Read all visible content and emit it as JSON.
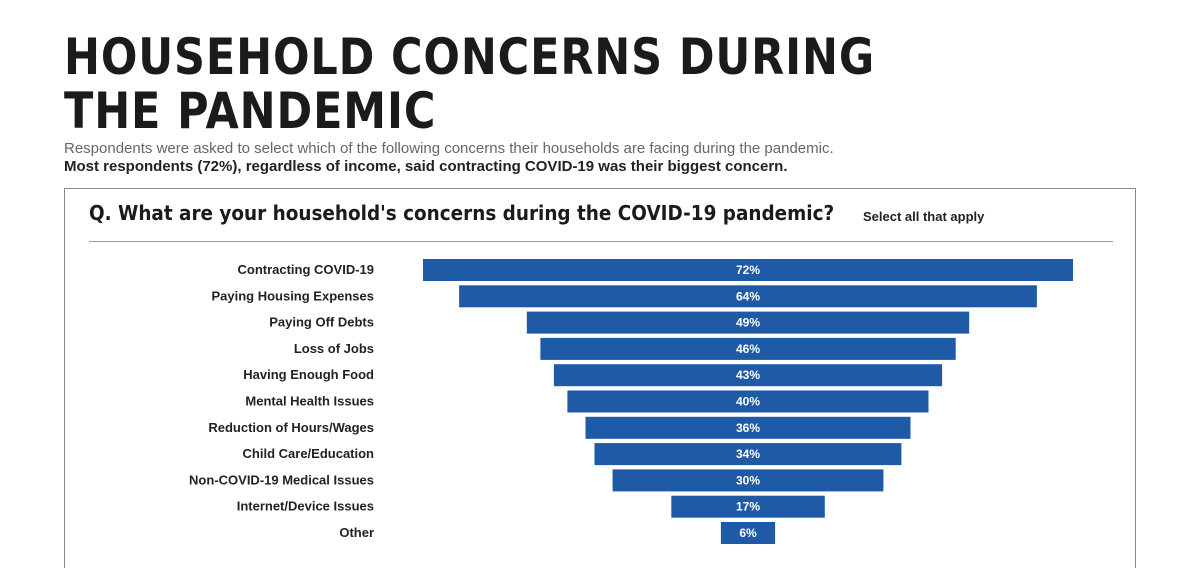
{
  "header": {
    "title_line1": "HOUSEHOLD CONCERNS DURING",
    "title_line2": "THE PANDEMIC",
    "subtitle": "Respondents were asked to select which of the following concerns their households are facing during the pandemic.",
    "subtitle_bold": "Most respondents (72%), regardless of income, said contracting COVID-19 was their biggest concern."
  },
  "panel": {
    "question": "Q. What are your household's concerns during the COVID-19 pandemic?",
    "note": "Select all that apply"
  },
  "colors": {
    "bar": "#1f5aa6",
    "bar_text": "#ffffff"
  },
  "chart_data": {
    "type": "bar",
    "orientation": "horizontal-centered",
    "categories": [
      "Contracting COVID-19",
      "Paying Housing Expenses",
      "Paying Off Debts",
      "Loss of Jobs",
      "Having Enough Food",
      "Mental Health Issues",
      "Reduction of Hours/Wages",
      "Child Care/Education",
      "Non-COVID-19 Medical Issues",
      "Internet/Device Issues",
      "Other"
    ],
    "values": [
      72,
      64,
      49,
      46,
      43,
      40,
      36,
      34,
      30,
      17,
      6
    ],
    "value_labels": [
      "72%",
      "64%",
      "49%",
      "46%",
      "43%",
      "40%",
      "36%",
      "34%",
      "30%",
      "17%",
      "6%"
    ],
    "title": "Q. What are your household's concerns during the COVID-19 pandemic?",
    "xlabel": "",
    "ylabel": "",
    "xlim": [
      0,
      72
    ],
    "grid": false,
    "legend": "none"
  }
}
